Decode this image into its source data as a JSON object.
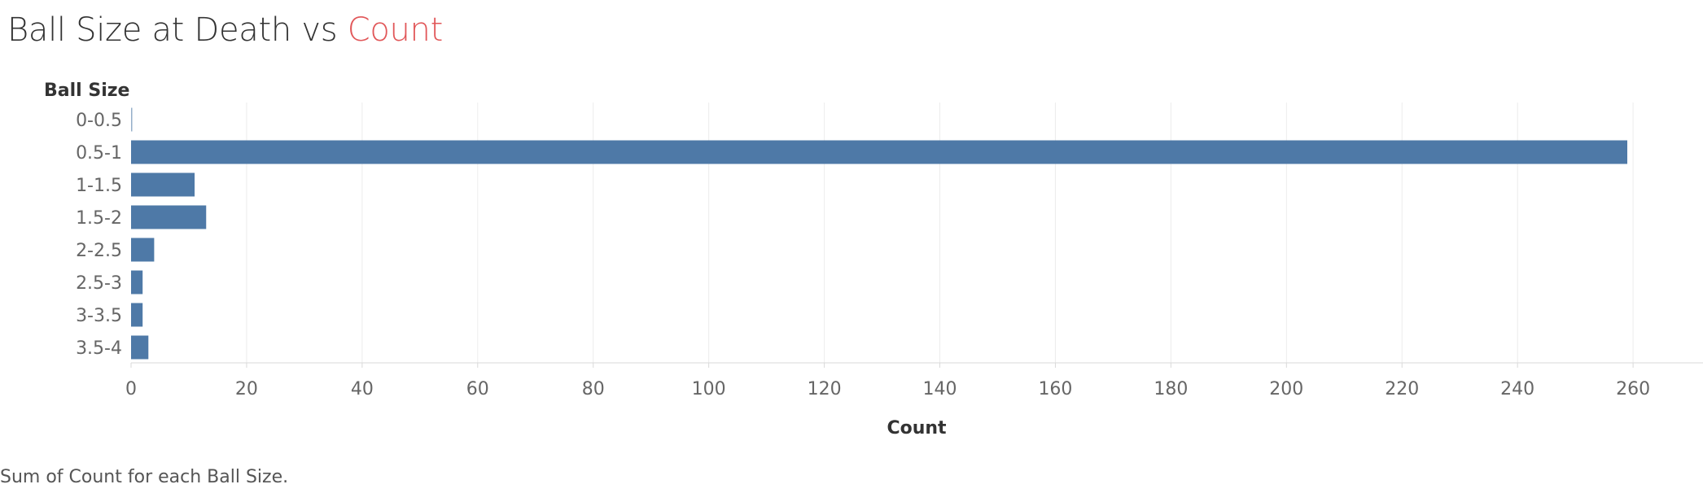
{
  "title": {
    "prefix": "Ball Size at Death vs ",
    "accent": "Count",
    "accent_color": "#e15759"
  },
  "caption": "Sum of Count for each Ball Size.",
  "chart_data": {
    "type": "bar",
    "orientation": "horizontal",
    "categories": [
      "0-0.5",
      "0.5-1",
      "1-1.5",
      "1.5-2",
      "2-2.5",
      "2.5-3",
      "3-3.5",
      "3.5-4"
    ],
    "values": [
      0.2,
      259,
      11,
      13,
      4,
      2,
      2,
      3
    ],
    "xlabel": "Count",
    "ylabel": "Ball Size",
    "xlim": [
      0,
      270
    ],
    "xticks": [
      0,
      20,
      40,
      60,
      80,
      100,
      120,
      140,
      160,
      180,
      200,
      220,
      240,
      260
    ],
    "grid": true,
    "bar_color": "#4e79a7"
  }
}
